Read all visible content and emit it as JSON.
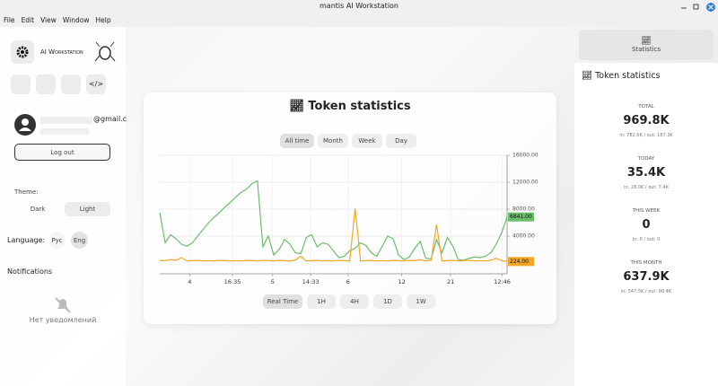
{
  "window": {
    "title": "mantis AI Workstation"
  },
  "menu": [
    "File",
    "Edit",
    "View",
    "Window",
    "Help"
  ],
  "sidebar": {
    "brand": "AI Workstation",
    "email_suffix": "@gmail.c",
    "logout": "Log out",
    "theme_label": "Theme:",
    "theme_options": [
      "Dark",
      "Light"
    ],
    "language_label": "Language:",
    "languages": [
      "Рус",
      "Eng"
    ],
    "notifications": "Notifications",
    "no_notifications": "Нет уведомлений"
  },
  "main": {
    "title": "Token statistics",
    "ranges": [
      "All time",
      "Month",
      "Week",
      "Day"
    ],
    "intervals": [
      "Real Time",
      "1H",
      "4H",
      "1D",
      "1W"
    ]
  },
  "chart_data": {
    "type": "line",
    "x": [
      0,
      1,
      2,
      3,
      4,
      5,
      6,
      7,
      8,
      9,
      10,
      11,
      12,
      13,
      14,
      15,
      16,
      17,
      18,
      19,
      20,
      21,
      22,
      23,
      24,
      25,
      26,
      27,
      28,
      29,
      30,
      31,
      32,
      33,
      34,
      35,
      36,
      37,
      38,
      39,
      40,
      41,
      42,
      43,
      44,
      45,
      46,
      47,
      48,
      49,
      50,
      51,
      52,
      53,
      54,
      55,
      56,
      57,
      58,
      59,
      60,
      61,
      62,
      63,
      64
    ],
    "xlim": [
      0,
      64
    ],
    "xticks": [
      {
        "value": 5.5,
        "label": "4"
      },
      {
        "value": 13.4,
        "label": "16:35"
      },
      {
        "value": 20.8,
        "label": "5"
      },
      {
        "value": 27.8,
        "label": "14:33"
      },
      {
        "value": 34.7,
        "label": "6"
      },
      {
        "value": 44.6,
        "label": "12"
      },
      {
        "value": 53.6,
        "label": "21"
      },
      {
        "value": 63.1,
        "label": "12:46"
      }
    ],
    "ylim": [
      -1600,
      16000
    ],
    "yticks": [
      {
        "value": 4000,
        "label": "4000.00"
      },
      {
        "value": 8000,
        "label": "8000.00"
      },
      {
        "value": 12000,
        "label": "12000.00"
      },
      {
        "value": 16000,
        "label": "16000.00"
      }
    ],
    "grid": true,
    "series": [
      {
        "color": "#6abf69",
        "values": [
          7500,
          3000,
          4200,
          3600,
          2800,
          2500,
          3000,
          4000,
          5000,
          6000,
          6800,
          7500,
          8300,
          9000,
          9800,
          10500,
          11000,
          11800,
          12200,
          2400,
          4000,
          1200,
          2000,
          3500,
          2800,
          1500,
          1400,
          3800,
          4200,
          2400,
          3000,
          2800,
          1800,
          800,
          1000,
          1800,
          2200,
          3000,
          2600,
          1500,
          1000,
          2500,
          4000,
          3600,
          1200,
          500,
          900,
          2200,
          3200,
          700,
          600,
          3500,
          1500,
          3800,
          2500,
          500,
          400,
          700,
          900,
          800,
          1000,
          1500,
          2800,
          4500,
          6841
        ],
        "value_labels": [
          null,
          null,
          null,
          null,
          null,
          null,
          null,
          null,
          null,
          null,
          null,
          null,
          null,
          null,
          null,
          null,
          null,
          null,
          null,
          null,
          null,
          null,
          null,
          null,
          null,
          null,
          null,
          null,
          null,
          null,
          null,
          null,
          null,
          null,
          null,
          null,
          null,
          null,
          null,
          null,
          null,
          null,
          null,
          null,
          null,
          null,
          null,
          null,
          null,
          null,
          null,
          null,
          null,
          null,
          null,
          null,
          null,
          null,
          null,
          null,
          null,
          null,
          null,
          null,
          "6841.00"
        ]
      },
      {
        "color": "#f5a623",
        "values": [
          400,
          350,
          500,
          400,
          800,
          300,
          350,
          400,
          300,
          350,
          300,
          400,
          350,
          300,
          350,
          300,
          400,
          350,
          300,
          400,
          350,
          300,
          400,
          350,
          300,
          450,
          1000,
          300,
          350,
          400,
          300,
          350,
          300,
          400,
          350,
          300,
          8100,
          300,
          350,
          400,
          300,
          350,
          300,
          400,
          350,
          300,
          400,
          350,
          500,
          300,
          400,
          5700,
          300,
          350,
          400,
          300,
          350,
          400,
          300,
          350,
          300,
          400,
          700,
          350,
          224
        ],
        "value_labels": [
          null,
          null,
          null,
          null,
          null,
          null,
          null,
          null,
          null,
          null,
          null,
          null,
          null,
          null,
          null,
          null,
          null,
          null,
          null,
          null,
          null,
          null,
          null,
          null,
          null,
          null,
          null,
          null,
          null,
          null,
          null,
          null,
          null,
          null,
          null,
          null,
          null,
          null,
          null,
          null,
          null,
          null,
          null,
          null,
          null,
          null,
          null,
          null,
          null,
          null,
          null,
          null,
          null,
          null,
          null,
          null,
          null,
          null,
          null,
          null,
          null,
          null,
          null,
          null,
          "224.00"
        ]
      }
    ]
  },
  "right_panel": {
    "tab": "Statistics",
    "title": "Token statistics",
    "stats": [
      {
        "label": "TOTAL",
        "value": "969.8K",
        "detail": "in: 782.6K / out: 187.3K"
      },
      {
        "label": "TODAY",
        "value": "35.4K",
        "detail": "in: 28.0K / out: 7.4K"
      },
      {
        "label": "THIS WEEK",
        "value": "0",
        "detail": "in: 0 / out: 0"
      },
      {
        "label": "THIS MONTH",
        "value": "637.9K",
        "detail": "in: 547.5K / out: 90.4K"
      }
    ]
  }
}
